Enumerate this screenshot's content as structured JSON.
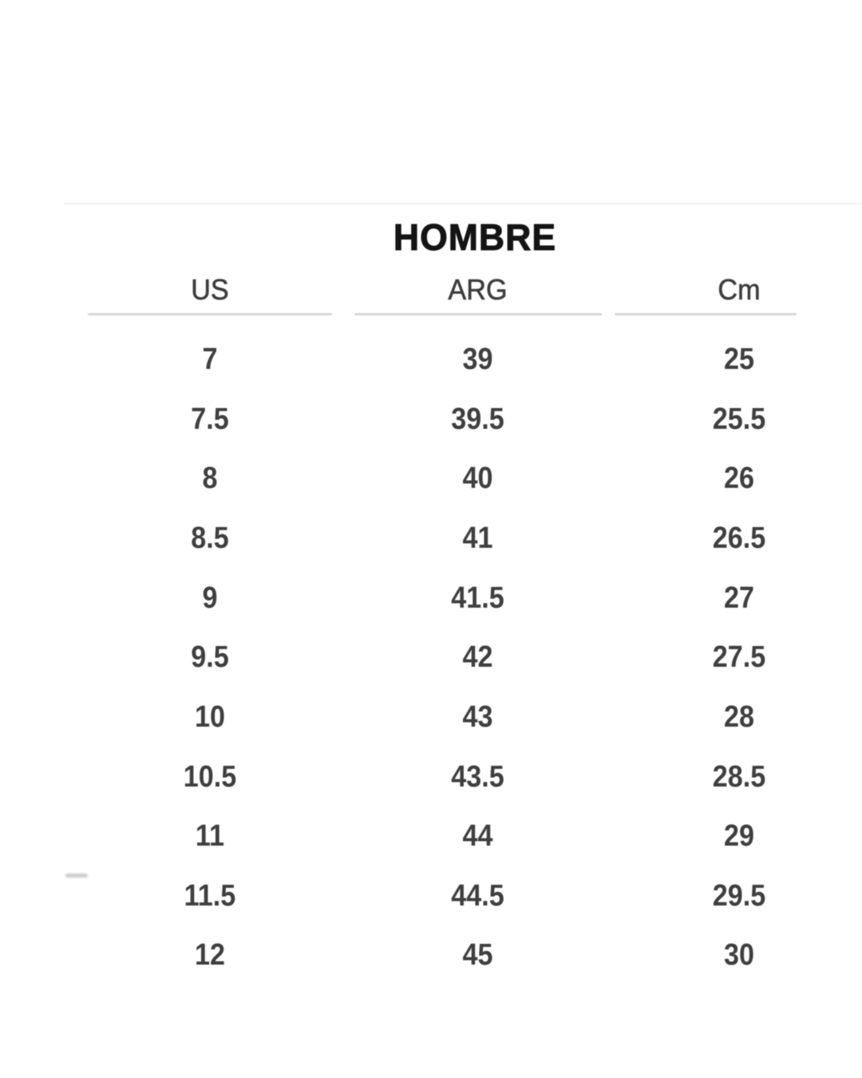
{
  "size_chart": {
    "title": "HOMBRE",
    "columns": [
      "US",
      "ARG",
      "Cm"
    ],
    "rows": [
      {
        "us": "7",
        "arg": "39",
        "cm": "25"
      },
      {
        "us": "7.5",
        "arg": "39.5",
        "cm": "25.5"
      },
      {
        "us": "8",
        "arg": "40",
        "cm": "26"
      },
      {
        "us": "8.5",
        "arg": "41",
        "cm": "26.5"
      },
      {
        "us": "9",
        "arg": "41.5",
        "cm": "27"
      },
      {
        "us": "9.5",
        "arg": "42",
        "cm": "27.5"
      },
      {
        "us": "10",
        "arg": "43",
        "cm": "28"
      },
      {
        "us": "10.5",
        "arg": "43.5",
        "cm": "28.5"
      },
      {
        "us": "11",
        "arg": "44",
        "cm": "29"
      },
      {
        "us": "11.5",
        "arg": "44.5",
        "cm": "29.5"
      },
      {
        "us": "12",
        "arg": "45",
        "cm": "30"
      }
    ],
    "colors": {
      "title": "#141414",
      "header": "#3d3d3d",
      "value": "#3f3f3f",
      "rule": "#d8d5d5",
      "background": "#ffffff"
    }
  }
}
